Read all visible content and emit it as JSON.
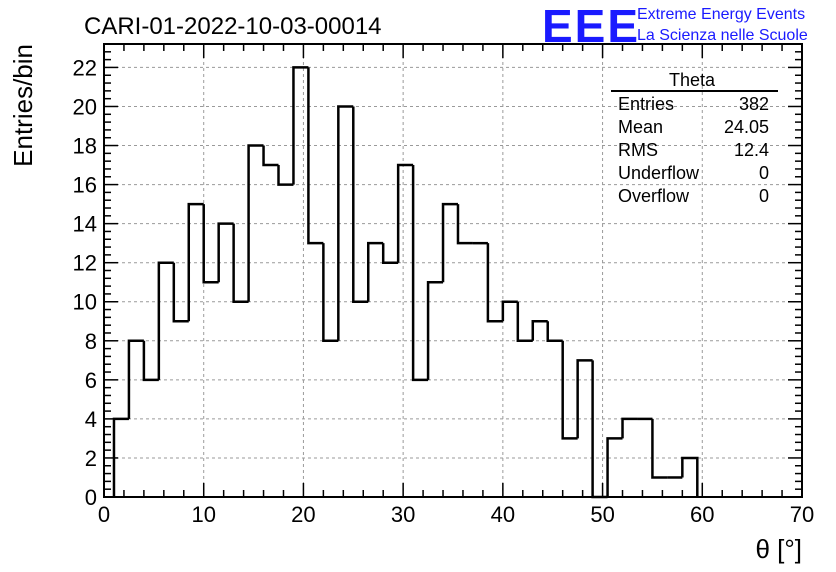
{
  "page": {
    "title": "CARI-01-2022-10-03-00014",
    "logo": "EEE",
    "brand_line1": "Extreme Energy Events",
    "brand_line2": "La Scienza nelle Scuole"
  },
  "stats_box": {
    "title": "Theta",
    "rows": [
      {
        "label": "Entries",
        "value": "382"
      },
      {
        "label": "Mean",
        "value": "24.05"
      },
      {
        "label": "RMS",
        "value": "12.4"
      },
      {
        "label": "Underflow",
        "value": "0"
      },
      {
        "label": "Overflow",
        "value": "0"
      }
    ]
  },
  "colors": {
    "logo": "#1a1aff",
    "grid": "#9a9a9a",
    "histogram": "#000000"
  },
  "chart_data": {
    "type": "bar",
    "style": "step-histogram",
    "title": "CARI-01-2022-10-03-00014",
    "xlabel": "θ [°]",
    "ylabel": "Entries/bin",
    "xlim": [
      0,
      70
    ],
    "ylim": [
      0,
      23.2
    ],
    "x_ticks": [
      0,
      10,
      20,
      30,
      40,
      50,
      60,
      70
    ],
    "y_ticks": [
      0,
      2,
      4,
      6,
      8,
      10,
      12,
      14,
      16,
      18,
      20,
      22
    ],
    "grid": true,
    "bin_width": 1.5,
    "first_bin_low": 1,
    "values": [
      4,
      8,
      6,
      12,
      9,
      15,
      11,
      14,
      10,
      18,
      17,
      16,
      22,
      13,
      8,
      20,
      10,
      13,
      12,
      17,
      6,
      11,
      15,
      13,
      13,
      9,
      10,
      8,
      9,
      8,
      3,
      7,
      0,
      3,
      4,
      4,
      1,
      1,
      2
    ]
  }
}
